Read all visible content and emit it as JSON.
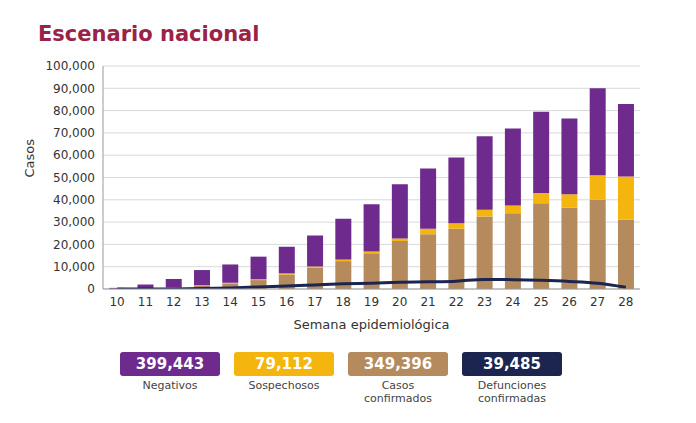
{
  "chart_data": {
    "type": "bar",
    "title": "Escenario nacional",
    "x_label": "Semana epidemiológica",
    "y_label": "Casos",
    "stacked": true,
    "grid": true,
    "categories": [
      "10",
      "11",
      "12",
      "13",
      "14",
      "15",
      "16",
      "17",
      "18",
      "19",
      "20",
      "21",
      "22",
      "23",
      "24",
      "25",
      "26",
      "27",
      "28"
    ],
    "ylim": [
      0,
      100000
    ],
    "yticks": [
      0,
      {
        "value": 10000,
        "label": "10,000"
      },
      {
        "value": 20000,
        "label": "20,000"
      },
      {
        "value": 30000,
        "label": "30,000"
      },
      {
        "value": 40000,
        "label": "40,000"
      },
      {
        "value": 50000,
        "label": "50,000"
      },
      {
        "value": 60000,
        "label": "60,000"
      },
      {
        "value": 70000,
        "label": "70,000"
      },
      {
        "value": 80000,
        "label": "80,000"
      },
      {
        "value": 90000,
        "label": "90,000"
      },
      {
        "value": 100000,
        "label": "100,000"
      }
    ],
    "series": [
      {
        "name": "Negativos",
        "type": "bar",
        "color": "#6e2a8c",
        "total": {
          "value": 399443,
          "label": "399,443"
        },
        "values": [
          420,
          1750,
          3800,
          6800,
          8200,
          10100,
          12000,
          13900,
          18300,
          21200,
          24300,
          27000,
          29500,
          33000,
          34500,
          36500,
          34000,
          39000,
          32500
        ]
      },
      {
        "name": "Sospechosos",
        "type": "bar",
        "color": "#f5b50f",
        "total": {
          "value": 79112,
          "label": "79,112"
        },
        "values": [
          30,
          50,
          100,
          200,
          300,
          400,
          500,
          600,
          700,
          800,
          1200,
          2500,
          2500,
          3000,
          3500,
          4500,
          6000,
          11000,
          19500
        ]
      },
      {
        "name": "Casos confirmados",
        "type": "bar",
        "color": "#b58a5c",
        "total": {
          "value": 349396,
          "label": "349,396"
        },
        "values": [
          50,
          200,
          600,
          1500,
          2500,
          4000,
          6500,
          9500,
          12500,
          16000,
          21500,
          24500,
          27000,
          32500,
          34000,
          38500,
          36500,
          40000,
          31000
        ]
      },
      {
        "name": "Defunciones confirmadas",
        "type": "line",
        "color": "#1c2450",
        "total": {
          "value": 39485,
          "label": "39,485"
        },
        "values": [
          0,
          10,
          50,
          200,
          500,
          900,
          1300,
          1800,
          2300,
          2600,
          3000,
          3200,
          3500,
          4300,
          4200,
          3900,
          3400,
          2600,
          800
        ]
      }
    ]
  }
}
